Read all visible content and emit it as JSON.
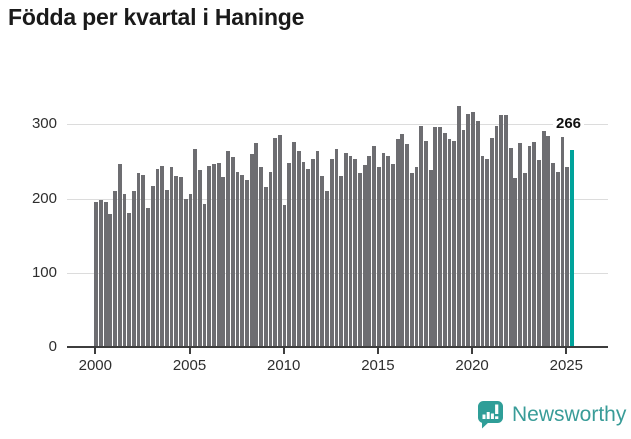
{
  "title": "Födda per kvartal i Haninge",
  "annotation": {
    "latest_value_label": "266"
  },
  "branding": {
    "name": "Newsworthy",
    "icon": "newsworthy-speech-bubble-chart-icon"
  },
  "colors": {
    "bar": "#6d6d71",
    "highlight": "#00a39b",
    "grid": "#dcdcdc",
    "axis": "#3d3d3d",
    "text": "#1a1a1a",
    "brand": "#399c98"
  },
  "chart_data": {
    "type": "bar",
    "title": "Födda per kvartal i Haninge",
    "x_start": "2000 Q1",
    "x_end": "2025 Q2",
    "x_step": "quarter",
    "values": [
      196,
      198,
      195,
      179,
      210,
      246,
      206,
      181,
      210,
      234,
      232,
      187,
      217,
      240,
      244,
      212,
      242,
      230,
      229,
      199,
      206,
      267,
      239,
      193,
      244,
      247,
      248,
      229,
      264,
      256,
      236,
      232,
      225,
      260,
      275,
      242,
      216,
      236,
      281,
      286,
      192,
      248,
      276,
      264,
      249,
      240,
      254,
      264,
      230,
      210,
      253,
      267,
      230,
      261,
      257,
      254,
      235,
      245,
      257,
      271,
      243,
      261,
      257,
      247,
      280,
      287,
      273,
      235,
      242,
      298,
      278,
      239,
      296,
      297,
      289,
      280,
      278,
      325,
      292,
      314,
      317,
      305,
      257,
      254,
      282,
      298,
      312,
      312,
      268,
      228,
      275,
      234,
      271,
      276,
      252,
      291,
      285,
      248,
      236,
      283,
      243,
      266
    ],
    "highlight": {
      "index": 101,
      "value": 266,
      "label": "266"
    },
    "x_tick_labels": [
      "2000",
      "2005",
      "2010",
      "2015",
      "2020",
      "2025"
    ],
    "y_tick_labels": [
      "0",
      "100",
      "200",
      "300"
    ],
    "y_ticks": [
      0,
      100,
      200,
      300
    ],
    "ylim": [
      0,
      340
    ],
    "grid": "horizontal",
    "legend": "none"
  }
}
